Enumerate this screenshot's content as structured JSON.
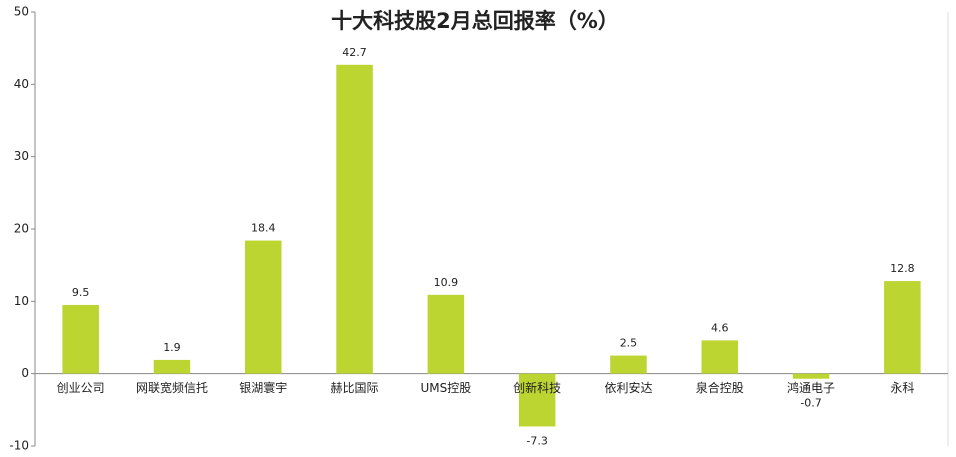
{
  "chart_data": {
    "type": "bar",
    "title": "十大科技股2月总回报率（%）",
    "categories": [
      "创业公司",
      "网联宽频信托",
      "银湖寰宇",
      "赫比国际",
      "UMS控股",
      "创新科技",
      "依利安达",
      "泉合控股",
      "鸿通电子",
      "永科"
    ],
    "values": [
      9.5,
      1.9,
      18.4,
      42.7,
      10.9,
      -7.3,
      2.5,
      4.6,
      -0.7,
      12.8
    ],
    "color": "#bdd531",
    "ylim": [
      -10,
      50
    ],
    "yticks": [
      -10,
      0,
      10,
      20,
      30,
      40,
      50
    ],
    "grid": false
  }
}
